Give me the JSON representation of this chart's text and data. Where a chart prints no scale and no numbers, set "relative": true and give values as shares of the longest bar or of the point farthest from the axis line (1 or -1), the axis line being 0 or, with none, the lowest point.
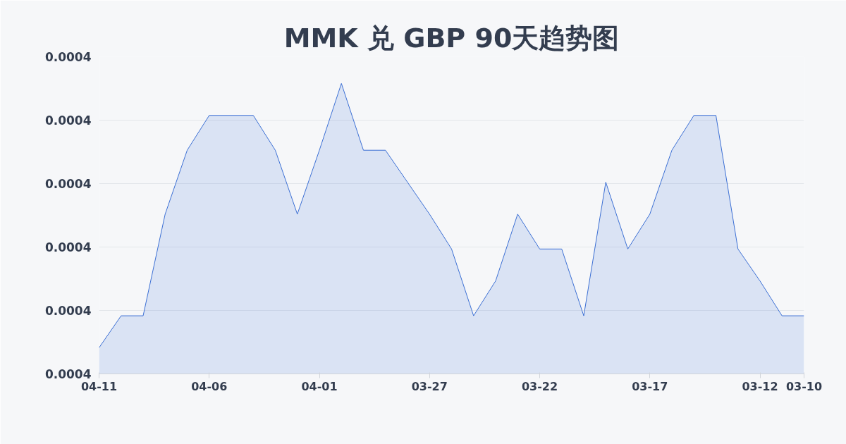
{
  "chart_data": {
    "type": "area",
    "title": "MMK 兑 GBP 90天趋势图",
    "relative": true,
    "grid": "y",
    "color": "#3b6fd4",
    "categories": [
      "04-11",
      null,
      null,
      null,
      null,
      "04-06",
      null,
      null,
      null,
      null,
      "04-01",
      null,
      null,
      null,
      null,
      "03-27",
      null,
      null,
      null,
      null,
      "03-22",
      null,
      null,
      null,
      null,
      "03-17",
      null,
      null,
      null,
      null,
      "03-12",
      null,
      "03-10"
    ],
    "values": [
      0.09,
      0.2,
      0.2,
      0.55,
      0.77,
      0.89,
      0.89,
      0.89,
      0.77,
      0.55,
      0.77,
      1,
      0.77,
      0.77,
      0.66,
      0.55,
      0.43,
      0.2,
      0.32,
      0.55,
      0.43,
      0.43,
      0.2,
      0.66,
      0.43,
      0.55,
      0.77,
      0.89,
      0.89,
      0.43,
      0.32,
      0.2,
      0.2
    ],
    "annotations": [
      "0.0004",
      "0.0004",
      "0.0004",
      "0.0004",
      "0.0004",
      "0.0004"
    ]
  }
}
